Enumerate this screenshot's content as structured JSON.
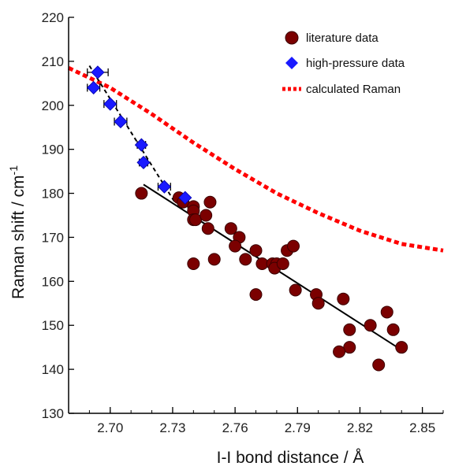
{
  "chart_data": {
    "type": "scatter",
    "xlabel": "I-I bond distance / Å",
    "ylabel_main": "Raman shift / cm",
    "ylabel_sup": "-1",
    "xlim": [
      2.68,
      2.86
    ],
    "ylim": [
      130,
      220
    ],
    "x_ticks": [
      {
        "value": 2.7,
        "label": "2.70"
      },
      {
        "value": 2.73,
        "label": "2.73"
      },
      {
        "value": 2.76,
        "label": "2.76"
      },
      {
        "value": 2.79,
        "label": "2.79"
      },
      {
        "value": 2.82,
        "label": "2.82"
      },
      {
        "value": 2.85,
        "label": "2.85"
      }
    ],
    "x_minor_step": 0.01,
    "y_ticks": [
      {
        "value": 130,
        "label": "130"
      },
      {
        "value": 140,
        "label": "140"
      },
      {
        "value": 150,
        "label": "150"
      },
      {
        "value": 160,
        "label": "160"
      },
      {
        "value": 170,
        "label": "170"
      },
      {
        "value": 180,
        "label": "180"
      },
      {
        "value": 190,
        "label": "190"
      },
      {
        "value": 200,
        "label": "200"
      },
      {
        "value": 210,
        "label": "210"
      },
      {
        "value": 220,
        "label": "220"
      }
    ],
    "legend": {
      "placement": "top-right",
      "items": [
        {
          "label": "literature data",
          "marker": "circle",
          "color": "#7b0000"
        },
        {
          "label": "high-pressure data",
          "marker": "diamond",
          "color": "#1a1aff"
        },
        {
          "label": "calculated Raman",
          "marker": "dotted-line",
          "color": "#ff0000"
        }
      ]
    },
    "series": [
      {
        "name": "literature data",
        "marker": "circle",
        "color": "#7b0000",
        "points": [
          [
            2.715,
            180
          ],
          [
            2.733,
            179
          ],
          [
            2.735,
            178
          ],
          [
            2.74,
            177
          ],
          [
            2.74,
            176
          ],
          [
            2.74,
            174
          ],
          [
            2.741,
            174
          ],
          [
            2.74,
            164
          ],
          [
            2.746,
            175
          ],
          [
            2.748,
            178
          ],
          [
            2.747,
            172
          ],
          [
            2.75,
            165
          ],
          [
            2.758,
            172
          ],
          [
            2.762,
            170
          ],
          [
            2.76,
            168
          ],
          [
            2.765,
            165
          ],
          [
            2.77,
            167
          ],
          [
            2.773,
            164
          ],
          [
            2.77,
            157
          ],
          [
            2.778,
            164
          ],
          [
            2.78,
            164
          ],
          [
            2.779,
            163
          ],
          [
            2.783,
            164
          ],
          [
            2.785,
            167
          ],
          [
            2.788,
            168
          ],
          [
            2.789,
            158
          ],
          [
            2.799,
            157
          ],
          [
            2.8,
            155
          ],
          [
            2.812,
            156
          ],
          [
            2.815,
            149
          ],
          [
            2.815,
            145
          ],
          [
            2.81,
            144
          ],
          [
            2.825,
            150
          ],
          [
            2.829,
            141
          ],
          [
            2.833,
            153
          ],
          [
            2.836,
            149
          ],
          [
            2.84,
            145
          ]
        ]
      },
      {
        "name": "high-pressure data",
        "marker": "diamond",
        "color": "#1a1aff",
        "points": [
          {
            "x": 2.694,
            "y": 207.5,
            "xerr": 0.005
          },
          {
            "x": 2.692,
            "y": 204,
            "xerr": 0.003
          },
          {
            "x": 2.7,
            "y": 200.3,
            "xerr": 0.003
          },
          {
            "x": 2.705,
            "y": 196.3,
            "xerr": 0.003
          },
          {
            "x": 2.715,
            "y": 191,
            "xerr": 0.002
          },
          {
            "x": 2.716,
            "y": 187,
            "xerr": 0.002
          },
          {
            "x": 2.726,
            "y": 181.5,
            "xerr": 0.003
          },
          {
            "x": 2.736,
            "y": 179,
            "xerr": 0
          }
        ]
      },
      {
        "name": "calculated Raman",
        "type": "dotted-line",
        "color": "#ff0000",
        "points": [
          [
            2.68,
            208.5
          ],
          [
            2.7,
            204
          ],
          [
            2.72,
            198
          ],
          [
            2.74,
            191.5
          ],
          [
            2.76,
            185.5
          ],
          [
            2.78,
            180
          ],
          [
            2.8,
            175.5
          ],
          [
            2.82,
            171.5
          ],
          [
            2.84,
            168.5
          ],
          [
            2.86,
            167
          ]
        ]
      }
    ],
    "fits": [
      {
        "name": "literature fit",
        "style": "solid",
        "color": "#000000",
        "points": [
          [
            2.716,
            182
          ],
          [
            2.838,
            145
          ]
        ]
      },
      {
        "name": "high-pressure fit",
        "style": "dashed",
        "color": "#000000",
        "points": [
          [
            2.69,
            209
          ],
          [
            2.731,
            178
          ]
        ]
      }
    ]
  }
}
